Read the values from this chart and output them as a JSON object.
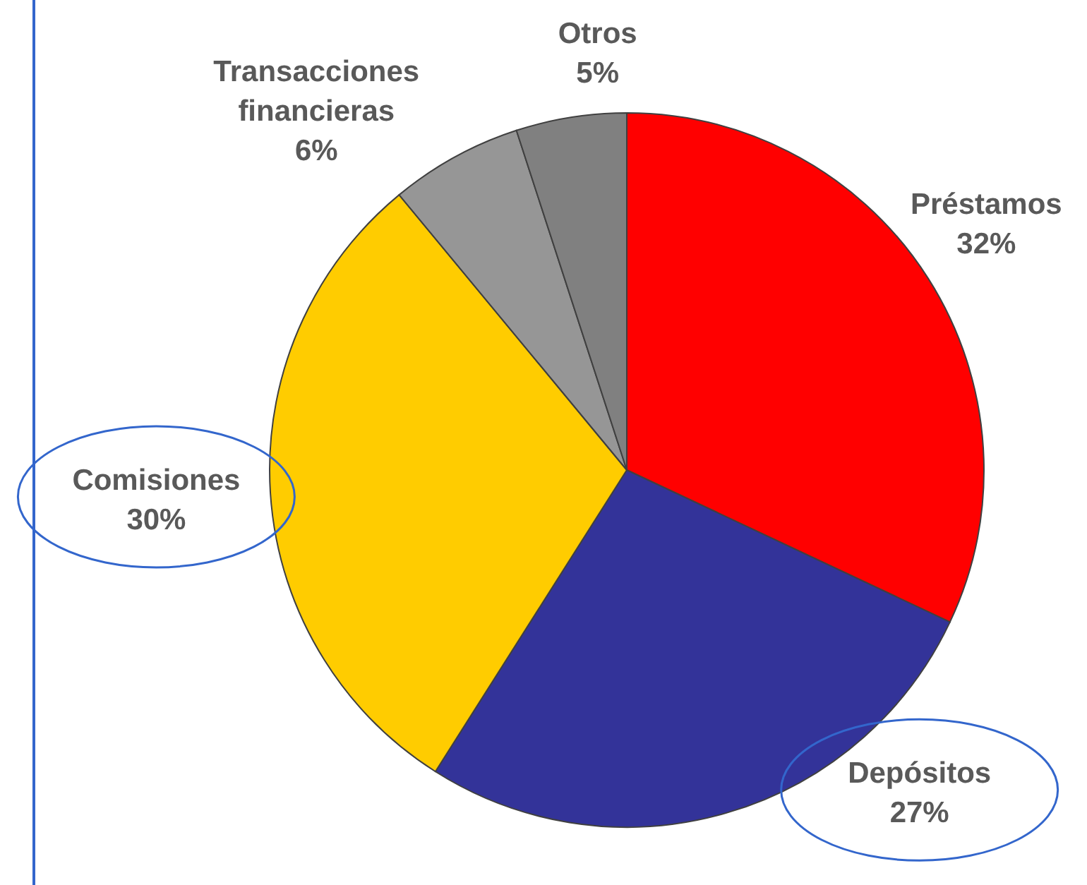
{
  "chart_data": {
    "type": "pie",
    "categories": [
      "Préstamos",
      "Depósitos",
      "Comisiones",
      "Transacciones financieras",
      "Otros"
    ],
    "values": [
      32,
      27,
      30,
      6,
      5
    ],
    "value_labels": [
      "32%",
      "27%",
      "30%",
      "6%",
      "5%"
    ],
    "colors": [
      "#ff0000",
      "#333399",
      "#ffcc00",
      "#969696",
      "#808080"
    ]
  }
}
